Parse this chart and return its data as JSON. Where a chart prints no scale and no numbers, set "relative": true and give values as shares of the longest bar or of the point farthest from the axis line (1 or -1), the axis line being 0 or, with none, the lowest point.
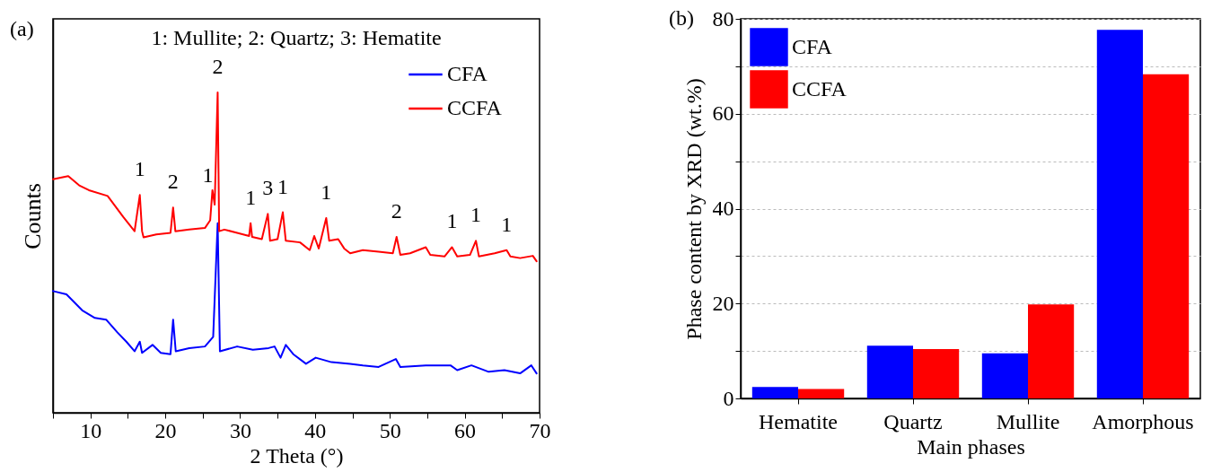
{
  "chart_data": [
    {
      "type": "line",
      "title": "(a)",
      "xlabel": "2 Theta (°)",
      "ylabel": "Counts",
      "relative": true,
      "xlim": [
        5,
        70
      ],
      "xticks": [
        {
          "value": 5,
          "label": null
        },
        10,
        {
          "value": 15,
          "label": null
        },
        20,
        {
          "value": 25,
          "label": null
        },
        30,
        {
          "value": 35,
          "label": null
        },
        40,
        {
          "value": 45,
          "label": null
        },
        50,
        {
          "value": 55,
          "label": null
        },
        60,
        {
          "value": 65,
          "label": null
        },
        70
      ],
      "tick_labels": "x",
      "grid": false,
      "legend": "top right",
      "marker": "none",
      "line_style": "solid",
      "series": [
        {
          "name": "CFA",
          "color": "#0000ff",
          "x": [
            5,
            6.8,
            8.9,
            10.6,
            12.1,
            13.6,
            14.8,
            15.9,
            16.6,
            16.9,
            18.3,
            19.4,
            20.7,
            21.05,
            21.4,
            23.2,
            25.3,
            26.4,
            27.0,
            27.3,
            29.6,
            31.7,
            33.8,
            34.6,
            35.4,
            36.1,
            37.1,
            38.8,
            40.1,
            42.2,
            44.7,
            46.4,
            48.5,
            50.8,
            51.4,
            54.8,
            58.1,
            59.0,
            60.9,
            63.2,
            65.3,
            67.4,
            68.9,
            69.6
          ],
          "values": [
            0.38,
            0.37,
            0.32,
            0.296,
            0.291,
            0.251,
            0.222,
            0.192,
            0.222,
            0.187,
            0.212,
            0.187,
            0.183,
            0.291,
            0.192,
            0.202,
            0.207,
            0.237,
            0.592,
            0.192,
            0.207,
            0.197,
            0.202,
            0.207,
            0.172,
            0.212,
            0.183,
            0.153,
            0.172,
            0.158,
            0.153,
            0.148,
            0.143,
            0.168,
            0.143,
            0.148,
            0.148,
            0.133,
            0.148,
            0.128,
            0.133,
            0.123,
            0.148,
            0.123
          ]
        },
        {
          "name": "CCFA",
          "color": "#ff0000",
          "x": [
            5,
            7.04,
            8.5,
            9.8,
            12.3,
            14.4,
            15.9,
            16.6,
            16.9,
            17.1,
            18.8,
            20.7,
            21.05,
            21.35,
            23.2,
            25.3,
            26.0,
            26.3,
            26.6,
            27.0,
            27.2,
            27.9,
            29.6,
            31.2,
            31.4,
            31.6,
            32.9,
            33.7,
            34.0,
            35.0,
            35.7,
            36.1,
            38.0,
            39.3,
            39.9,
            40.5,
            41.5,
            41.9,
            43.1,
            43.9,
            44.7,
            46.4,
            48.5,
            50.4,
            50.9,
            51.4,
            52.7,
            54.8,
            55.4,
            57.3,
            58.3,
            59.0,
            60.7,
            61.5,
            61.9,
            64.0,
            65.6,
            66.1,
            67.4,
            69.1,
            69.6
          ],
          "values": [
            0.729,
            0.739,
            0.71,
            0.695,
            0.677,
            0.611,
            0.567,
            0.68,
            0.567,
            0.548,
            0.557,
            0.562,
            0.641,
            0.567,
            0.572,
            0.577,
            0.601,
            0.695,
            0.65,
            1,
            0.567,
            0.572,
            0.562,
            0.552,
            0.592,
            0.549,
            0.542,
            0.621,
            0.537,
            0.542,
            0.626,
            0.537,
            0.532,
            0.508,
            0.552,
            0.513,
            0.608,
            0.537,
            0.542,
            0.513,
            0.498,
            0.508,
            0.503,
            0.498,
            0.549,
            0.493,
            0.498,
            0.517,
            0.493,
            0.488,
            0.517,
            0.488,
            0.493,
            0.537,
            0.488,
            0.498,
            0.508,
            0.488,
            0.483,
            0.49,
            0.473
          ]
        }
      ],
      "annotations": [
        "1: Mullite;   2: Quartz;   3: Hematite",
        {
          "text": "1",
          "x": 16.6,
          "y": 0.68
        },
        {
          "text": "2",
          "x": 21.05,
          "y": 0.641
        },
        {
          "text": "1",
          "x": 25.7,
          "y": 0.66
        },
        {
          "text": "2",
          "x": 27.0,
          "y": 1
        },
        {
          "text": "1",
          "x": 31.4,
          "y": 0.592
        },
        {
          "text": "3",
          "x": 33.7,
          "y": 0.621
        },
        {
          "text": "1",
          "x": 35.7,
          "y": 0.626
        },
        {
          "text": "1",
          "x": 41.5,
          "y": 0.608
        },
        {
          "text": "2",
          "x": 50.9,
          "y": 0.549
        },
        {
          "text": "1",
          "x": 58.3,
          "y": 0.517
        },
        {
          "text": "1",
          "x": 61.5,
          "y": 0.537
        },
        {
          "text": "1",
          "x": 65.6,
          "y": 0.508
        }
      ]
    },
    {
      "type": "bar",
      "title": "(b)",
      "xlabel": "Main phases",
      "ylabel": "Phase content by XRD (wt.%)",
      "categories": [
        "Hematite",
        "Quartz",
        "Mullite",
        "Amorphous"
      ],
      "ylim": [
        0,
        80
      ],
      "yticks": [
        0,
        {
          "value": 10,
          "label": null
        },
        20,
        {
          "value": 30,
          "label": null
        },
        40,
        {
          "value": 50,
          "label": null
        },
        60,
        {
          "value": 70,
          "label": null
        },
        80
      ],
      "grid": "y",
      "legend": "top left",
      "series": [
        {
          "name": "CFA",
          "color": "#0000ff",
          "values": [
            2.4,
            11.1,
            9.5,
            77.7
          ]
        },
        {
          "name": "CCFA",
          "color": "#ff0000",
          "values": [
            2.0,
            10.4,
            19.8,
            68.3
          ]
        }
      ]
    }
  ]
}
